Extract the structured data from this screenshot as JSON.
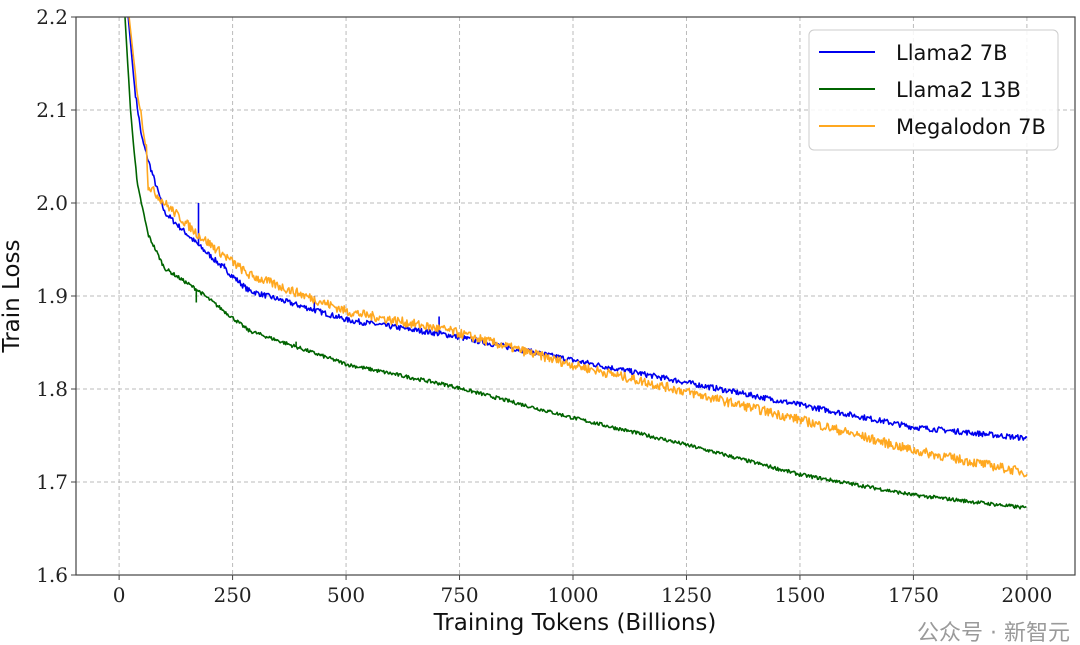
{
  "chart_data": {
    "type": "line",
    "title": "",
    "xlabel": "Training Tokens (Billions)",
    "ylabel": "Train Loss",
    "xlim": [
      -95,
      2106
    ],
    "ylim": [
      1.6,
      2.2
    ],
    "xticks": [
      0,
      250,
      500,
      750,
      1000,
      1250,
      1500,
      1750,
      2000
    ],
    "xtick_labels": [
      "0",
      "250",
      "500",
      "750",
      "1000",
      "1250",
      "1500",
      "1750",
      "2000"
    ],
    "yticks": [
      1.6,
      1.7,
      1.8,
      1.9,
      2.0,
      2.1,
      2.2
    ],
    "ytick_labels": [
      "1.6",
      "1.7",
      "1.8",
      "1.9",
      "2.0",
      "2.1",
      "2.2"
    ],
    "grid": true,
    "legend_position": "top-right",
    "series": [
      {
        "name": "Llama2 7B",
        "color": "#0000ee",
        "noise": 0.003,
        "x": [
          20,
          35,
          50,
          64,
          100,
          174,
          285,
          505,
          726,
          1000,
          1250,
          1500,
          1750,
          2000
        ],
        "y": [
          2.2,
          2.12,
          2.07,
          2.046,
          1.99,
          1.955,
          1.906,
          1.874,
          1.858,
          1.831,
          1.807,
          1.783,
          1.759,
          1.747
        ],
        "spikes": [
          [
            110,
            1.985
          ],
          [
            175,
            2.0
          ],
          [
            232,
            1.935
          ],
          [
            430,
            1.9
          ],
          [
            705,
            1.878
          ]
        ]
      },
      {
        "name": "Llama2 13B",
        "color": "#006400",
        "noise": 0.002,
        "x": [
          13,
          25,
          40,
          64,
          100,
          174,
          285,
          505,
          726,
          1000,
          1250,
          1500,
          1750,
          2000
        ],
        "y": [
          2.2,
          2.1,
          2.02,
          1.966,
          1.93,
          1.906,
          1.863,
          1.826,
          1.804,
          1.769,
          1.74,
          1.708,
          1.686,
          1.672
        ],
        "spikes": [
          [
            170,
            1.893
          ],
          [
            390,
            1.851
          ],
          [
            430,
            1.84
          ],
          [
            440,
            1.838
          ]
        ]
      },
      {
        "name": "Megalodon 7B",
        "color": "#ffa820",
        "noise": 0.005,
        "x": [
          22,
          40,
          60,
          64,
          100,
          174,
          285,
          505,
          726,
          1000,
          1250,
          1500,
          1750,
          2000
        ],
        "y": [
          2.2,
          2.12,
          2.06,
          2.019,
          2.0,
          1.966,
          1.923,
          1.883,
          1.863,
          1.826,
          1.797,
          1.767,
          1.734,
          1.71
        ],
        "spikes": []
      }
    ]
  },
  "watermark": "公众号 · 新智元"
}
